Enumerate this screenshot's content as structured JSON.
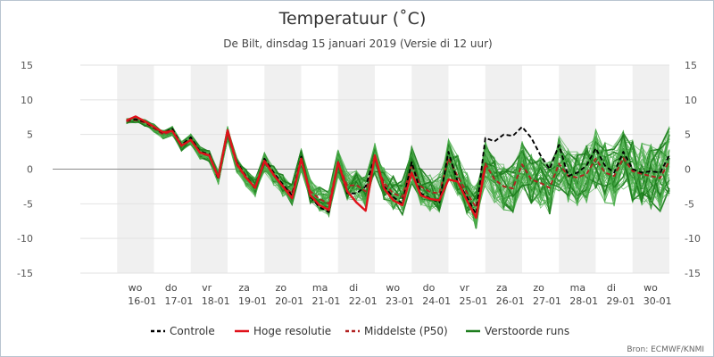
{
  "chart_data": {
    "type": "line",
    "title": "Temperatuur (˚C)",
    "subtitle": "De Bilt, dinsdag 15 januari 2019 (Versie di 12 uur)",
    "source": "Bron: ECMWF/KNMI",
    "ylim": [
      -15,
      15
    ],
    "xlim": [
      -1.25,
      14.75
    ],
    "y_ticks": [
      15,
      10,
      5,
      0,
      -5,
      -10,
      -15
    ],
    "grid": true,
    "x_ticks": [
      {
        "day": "wo",
        "date": "16-01"
      },
      {
        "day": "do",
        "date": "17-01"
      },
      {
        "day": "vr",
        "date": "18-01"
      },
      {
        "day": "za",
        "date": "19-01"
      },
      {
        "day": "zo",
        "date": "20-01"
      },
      {
        "day": "ma",
        "date": "21-01"
      },
      {
        "day": "di",
        "date": "22-01"
      },
      {
        "day": "wo",
        "date": "23-01"
      },
      {
        "day": "do",
        "date": "24-01"
      },
      {
        "day": "vr",
        "date": "25-01"
      },
      {
        "day": "za",
        "date": "26-01"
      },
      {
        "day": "zo",
        "date": "27-01"
      },
      {
        "day": "ma",
        "date": "28-01"
      },
      {
        "day": "di",
        "date": "29-01"
      },
      {
        "day": "wo",
        "date": "30-01"
      }
    ],
    "legend": [
      {
        "name": "Controle",
        "color": "#000000",
        "style": "dashed"
      },
      {
        "name": "Hoge resolutie",
        "color": "#e0121b",
        "style": "solid"
      },
      {
        "name": "Middelste (P50)",
        "color": "#b22222",
        "style": "dashed"
      },
      {
        "name": "Verstoorde runs",
        "color": "#1e7d1e",
        "style": "solid"
      }
    ],
    "series": [
      {
        "name": "Controle",
        "color": "#000000",
        "style": "dashed",
        "x": [
          0,
          0.25,
          0.5,
          0.75,
          1,
          1.25,
          1.5,
          1.75,
          2,
          2.25,
          2.5,
          2.75,
          3,
          3.25,
          3.5,
          3.75,
          4,
          4.25,
          4.5,
          4.75,
          5,
          5.25,
          5.5,
          5.75,
          6,
          6.25,
          6.5,
          6.75,
          7,
          7.25,
          7.5,
          7.75,
          8,
          8.25,
          8.5,
          8.75,
          9,
          9.25,
          9.5,
          9.75,
          10,
          10.25,
          10.5,
          10.75,
          11,
          11.25,
          11.5,
          11.75,
          12,
          12.25,
          12.5,
          12.75,
          13,
          13.25,
          13.5,
          13.75,
          14,
          14.25,
          14.5,
          14.75
        ],
        "y": [
          7,
          7.2,
          6.8,
          6,
          5.2,
          5.8,
          3.5,
          4.6,
          2.5,
          2.2,
          -1.5,
          5.5,
          1,
          -1,
          -2.8,
          1.5,
          -0.5,
          -2.2,
          -3.8,
          1.8,
          -4,
          -5.5,
          -6.2,
          1.2,
          -3.5,
          -3.5,
          -2.5,
          1.8,
          -2.5,
          -4,
          -5,
          1,
          -3.5,
          -4.2,
          -4.8,
          2.5,
          -1.8,
          -4,
          -6.5,
          4.5,
          4,
          5,
          4.8,
          6.1,
          4.5,
          2,
          0,
          3.5,
          -1,
          -0.5,
          0.5,
          3,
          0.5,
          -0.5,
          2.5,
          0,
          -0.5,
          -0.3,
          -0.5,
          2
        ]
      },
      {
        "name": "Hoge resolutie",
        "color": "#e0121b",
        "style": "solid",
        "x": [
          0,
          0.25,
          0.5,
          0.75,
          1,
          1.25,
          1.5,
          1.75,
          2,
          2.25,
          2.5,
          2.75,
          3,
          3.25,
          3.5,
          3.75,
          4,
          4.25,
          4.5,
          4.75,
          5,
          5.25,
          5.5,
          5.75,
          6,
          6.25,
          6.5,
          6.75,
          7,
          7.25,
          7.5,
          7.75,
          8,
          8.25,
          8.5,
          8.75,
          9,
          9.25,
          9.5,
          9.75
        ],
        "y": [
          7,
          7.6,
          6.9,
          6.1,
          5.3,
          5.5,
          3.4,
          4.2,
          2.4,
          2.0,
          -1.2,
          5.6,
          0.8,
          -1.2,
          -2.7,
          1.2,
          -0.8,
          -2.5,
          -4.2,
          1.5,
          -3.8,
          -5.2,
          -5.9,
          1.0,
          -3.2,
          -4.8,
          -6.0,
          2.0,
          -2.8,
          -4.5,
          -5.2,
          -0.5,
          -3.8,
          -4.3,
          -4.5,
          -1.5,
          -1.8,
          -4.5,
          -7.0,
          0.5
        ]
      },
      {
        "name": "Middelste (P50)",
        "color": "#b22222",
        "style": "dashed",
        "x": [
          0,
          0.25,
          0.5,
          0.75,
          1,
          1.25,
          1.5,
          1.75,
          2,
          2.25,
          2.5,
          2.75,
          3,
          3.25,
          3.5,
          3.75,
          4,
          4.25,
          4.5,
          4.75,
          5,
          5.25,
          5.5,
          5.75,
          6,
          6.25,
          6.5,
          6.75,
          7,
          7.25,
          7.5,
          7.75,
          8,
          8.25,
          8.5,
          8.75,
          9,
          9.25,
          9.5,
          9.75,
          10,
          10.25,
          10.5,
          10.75,
          11,
          11.25,
          11.5,
          11.75,
          12,
          12.25,
          12.5,
          12.75,
          13,
          13.25,
          13.5,
          13.75,
          14,
          14.25,
          14.5,
          14.75
        ],
        "y": [
          6.9,
          7.1,
          6.7,
          5.9,
          5.0,
          5.5,
          3.3,
          4.3,
          2.3,
          1.9,
          -1.2,
          5.2,
          0.6,
          -1.3,
          -2.6,
          1.0,
          -0.9,
          -2.4,
          -3.5,
          1.3,
          -3.2,
          -4.3,
          -5.0,
          0.9,
          -2.4,
          -2.3,
          -3.2,
          1.5,
          -2.0,
          -3.5,
          -4.0,
          0.6,
          -2.5,
          -3.3,
          -3.5,
          1.5,
          -1.0,
          -3.4,
          -5.5,
          0.8,
          -1.5,
          -2.5,
          -2.8,
          0.7,
          -1.5,
          -2.0,
          -2.7,
          0.8,
          -1.0,
          -1.2,
          -0.7,
          1.5,
          -0.5,
          -1.0,
          1.6,
          -0.3,
          -0.7,
          -1.0,
          -1.3,
          1.2
        ]
      }
    ]
  }
}
